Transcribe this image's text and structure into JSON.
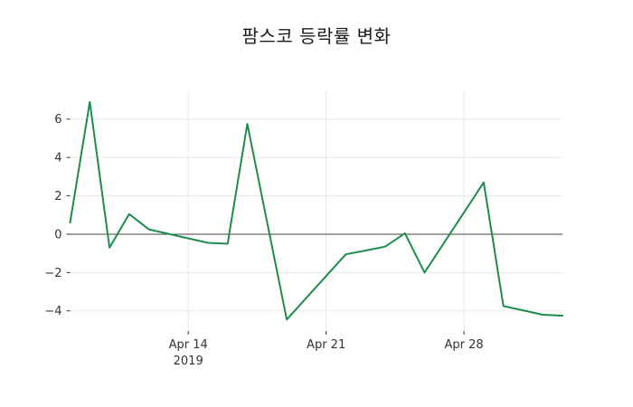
{
  "title": "팜스코 등락률 변화",
  "chart_data": {
    "type": "line",
    "title": "팜스코 등락률 변화",
    "legend": "none",
    "grid": true,
    "zero_line": true,
    "x_axis": {
      "tick_labels": [
        "Apr 14",
        "Apr 21",
        "Apr 28"
      ],
      "tick_days": [
        6,
        13,
        20
      ],
      "year_label": "2019",
      "start_date": "2019-04-08",
      "range_days": [
        0,
        25
      ]
    },
    "y_axis": {
      "tick_values": [
        6,
        4,
        2,
        0,
        -2,
        -4
      ],
      "tick_labels": [
        "6",
        "4",
        "2",
        "0",
        "−2",
        "−4"
      ],
      "range": [
        -5.05,
        7.45
      ]
    },
    "series": [
      {
        "name": "팜스코 등락률",
        "color": "#1e8c4b",
        "points": [
          {
            "date": "2019-04-08",
            "day": 0,
            "value": 0.6
          },
          {
            "date": "2019-04-09",
            "day": 1,
            "value": 6.9
          },
          {
            "date": "2019-04-10",
            "day": 2,
            "value": -0.7
          },
          {
            "date": "2019-04-11",
            "day": 3,
            "value": 1.05
          },
          {
            "date": "2019-04-12",
            "day": 4,
            "value": 0.25
          },
          {
            "date": "2019-04-15",
            "day": 7,
            "value": -0.45
          },
          {
            "date": "2019-04-16",
            "day": 8,
            "value": -0.5
          },
          {
            "date": "2019-04-17",
            "day": 9,
            "value": 5.75
          },
          {
            "date": "2019-04-18",
            "day": 10,
            "value": 0.65
          },
          {
            "date": "2019-04-19",
            "day": 11,
            "value": -4.45
          },
          {
            "date": "2019-04-22",
            "day": 14,
            "value": -1.05
          },
          {
            "date": "2019-04-23",
            "day": 15,
            "value": -0.85
          },
          {
            "date": "2019-04-24",
            "day": 16,
            "value": -0.65
          },
          {
            "date": "2019-04-25",
            "day": 17,
            "value": 0.05
          },
          {
            "date": "2019-04-26",
            "day": 18,
            "value": -2.0
          },
          {
            "date": "2019-04-29",
            "day": 21,
            "value": 2.7
          },
          {
            "date": "2019-04-30",
            "day": 22,
            "value": -3.75
          },
          {
            "date": "2019-05-02",
            "day": 24,
            "value": -4.2
          },
          {
            "date": "2019-05-03",
            "day": 25,
            "value": -4.25
          }
        ]
      }
    ]
  },
  "colors": {
    "line": "#1e8c4b",
    "grid": "#e8e8e8",
    "zero_line": "#404040",
    "tick_label": "#333333",
    "title": "#1a1a1a",
    "background": "#ffffff"
  }
}
